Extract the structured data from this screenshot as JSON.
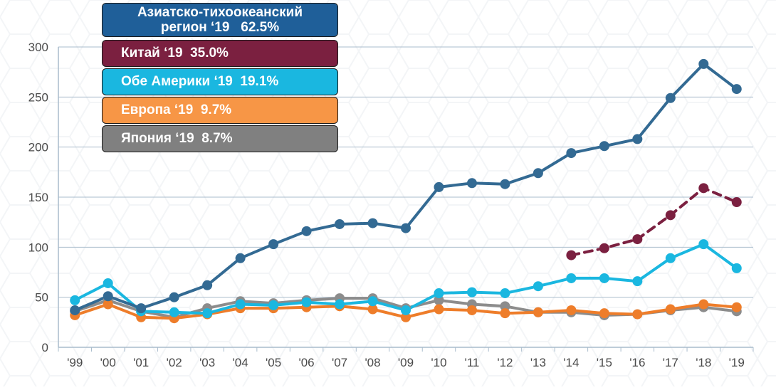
{
  "chart_data": {
    "type": "line",
    "categories": [
      "'99",
      "'00",
      "'01",
      "'02",
      "'03",
      "'04",
      "'05",
      "'06",
      "'07",
      "'08",
      "'09",
      "'10",
      "'11",
      "'12",
      "'13",
      "'14",
      "'15",
      "'16",
      "'17",
      "'18",
      "'19"
    ],
    "y_ticks": [
      "0",
      "50",
      "100",
      "150",
      "200",
      "250",
      "300"
    ],
    "ylim": [
      0,
      300
    ],
    "grid": true,
    "series": [
      {
        "name": "Азиатско-тихоокеанский регион ‘19   62.5%",
        "color": "#336a93",
        "dashed": false,
        "values": [
          37,
          51,
          39,
          50,
          62,
          89,
          103,
          116,
          123,
          124,
          119,
          160,
          164,
          163,
          174,
          194,
          201,
          208,
          249,
          283,
          258
        ]
      },
      {
        "name": "Китай ‘19  35.0%",
        "color": "#7b2040",
        "dashed": true,
        "values": [
          null,
          null,
          null,
          null,
          null,
          null,
          null,
          null,
          null,
          null,
          null,
          null,
          null,
          null,
          null,
          92,
          99,
          108,
          132,
          159,
          145
        ]
      },
      {
        "name": "Обе Америки ‘19  19.1%",
        "color": "#1ab7e0",
        "dashed": false,
        "values": [
          47,
          64,
          36,
          35,
          34,
          43,
          42,
          45,
          43,
          46,
          37,
          54,
          55,
          54,
          61,
          69,
          69,
          66,
          89,
          103,
          79
        ]
      },
      {
        "name": "Европа ‘19  9.7%",
        "color": "#ee7d2a",
        "dashed": false,
        "values": [
          32,
          43,
          30,
          29,
          33,
          39,
          39,
          40,
          41,
          38,
          30,
          38,
          37,
          34,
          35,
          37,
          34,
          33,
          38,
          43,
          40
        ]
      },
      {
        "name": "Япония ‘19  8.7%",
        "color": "#8c8c8c",
        "dashed": false,
        "values": [
          36,
          47,
          36,
          30,
          39,
          46,
          44,
          47,
          49,
          49,
          39,
          47,
          43,
          41,
          35,
          35,
          32,
          33,
          37,
          40,
          36
        ]
      }
    ],
    "legend_placement": "top-left",
    "legend_boxes": [
      {
        "label": "Азиатско-тихоокеанский\nрегион ‘19   62.5%",
        "fill": "#1f5f99"
      },
      {
        "label": "Китай ‘19  35.0%",
        "fill": "#7b2040"
      },
      {
        "label": "Обе Америки ‘19  19.1%",
        "fill": "#1ab7e0"
      },
      {
        "label": "Европа ‘19  9.7%",
        "fill": "#f79646"
      },
      {
        "label": "Япония ‘19  8.7%",
        "fill": "#808080"
      }
    ]
  }
}
